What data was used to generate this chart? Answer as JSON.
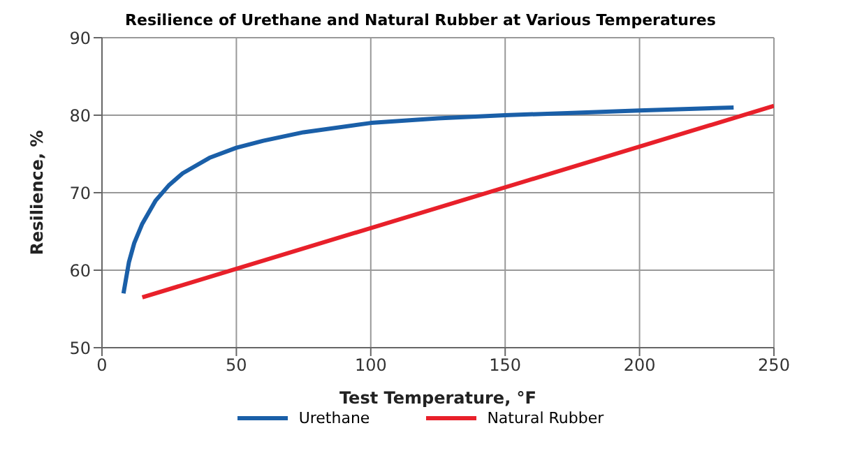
{
  "chart_data": {
    "type": "line",
    "title": "Resilience of Urethane and Natural Rubber at Various Temperatures",
    "xlabel": "Test Temperature, °F",
    "ylabel": "Resilience, %",
    "series": [
      {
        "name": "Urethane",
        "color": "#1a5fa8",
        "x": [
          8,
          10,
          12,
          15,
          20,
          25,
          30,
          40,
          50,
          60,
          75,
          100,
          125,
          150,
          175,
          200,
          235
        ],
        "values": [
          57,
          61,
          63.5,
          66,
          69,
          71,
          72.5,
          74.5,
          75.8,
          76.7,
          77.8,
          79,
          79.6,
          80,
          80.3,
          80.6,
          81
        ]
      },
      {
        "name": "Natural Rubber",
        "color": "#e8202a",
        "x": [
          15,
          250
        ],
        "values": [
          56.5,
          81.2
        ]
      }
    ],
    "xlim": [
      0,
      250
    ],
    "xticks": [
      0,
      50,
      100,
      150,
      200,
      250
    ],
    "ylim": [
      50,
      90
    ],
    "yticks": [
      50,
      60,
      70,
      80,
      90
    ],
    "grid": true,
    "legend": "bottom",
    "marker": "none",
    "line_style": "solid"
  }
}
